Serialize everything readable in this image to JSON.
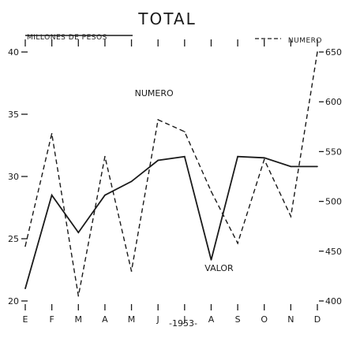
{
  "chart_data": {
    "type": "line",
    "title": "TOTAL",
    "left_axis_label": "MILLONES DE PESOS",
    "right_axis_label": "NUMERO",
    "x_caption": "-1953-",
    "categories": [
      "E",
      "F",
      "M",
      "A",
      "M",
      "J",
      "J",
      "A",
      "S",
      "O",
      "N",
      "D"
    ],
    "left_axis": {
      "ylim": [
        20,
        40
      ],
      "ticks": [
        "20",
        "25",
        "30",
        "35",
        "40"
      ]
    },
    "right_axis": {
      "ylim": [
        400,
        650
      ],
      "ticks": [
        "400",
        "450",
        "500",
        "550",
        "600",
        "650"
      ]
    },
    "series": [
      {
        "name": "VALOR",
        "axis": "left",
        "style": "solid",
        "values": [
          21.0,
          28.5,
          25.5,
          28.5,
          29.6,
          31.3,
          31.6,
          23.3,
          31.6,
          31.5,
          30.8,
          30.8
        ]
      },
      {
        "name": "NUMERO",
        "axis": "right",
        "style": "dashed",
        "values": [
          455,
          568,
          405,
          545,
          430,
          582,
          570,
          510,
          458,
          542,
          485,
          650
        ]
      }
    ],
    "annotations": [
      "NUMERO",
      "VALOR"
    ],
    "grid": false
  }
}
